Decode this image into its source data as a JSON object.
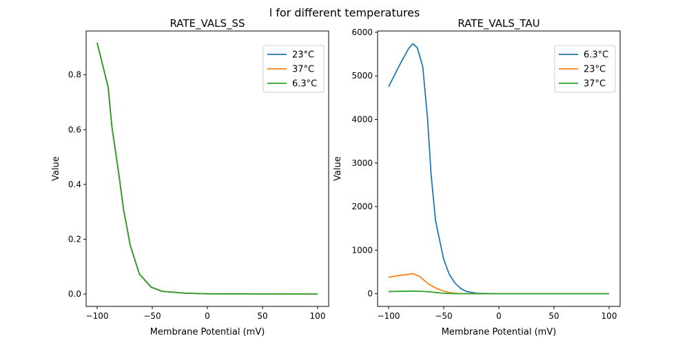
{
  "suptitle": "l for different temperatures",
  "chart_data": [
    {
      "type": "line",
      "title": "RATE_VALS_SS",
      "xlabel": "Membrane Potential (mV)",
      "ylabel": "Value",
      "xlim": [
        -110,
        110
      ],
      "ylim": [
        -0.045,
        0.96
      ],
      "xticks": [
        -100,
        -50,
        0,
        50,
        100
      ],
      "xtick_labels": [
        "−100",
        "−50",
        "0",
        "50",
        "100"
      ],
      "yticks": [
        0.0,
        0.2,
        0.4,
        0.6,
        0.8
      ],
      "ytick_labels": [
        "0.0",
        "0.2",
        "0.4",
        "0.6",
        "0.8"
      ],
      "legend": "top-right",
      "series": [
        {
          "name": "23°C",
          "color": "#1f77b4",
          "x": [
            -100,
            -90,
            -86.7,
            -80.4,
            -76,
            -70,
            -61.7,
            -51,
            -41,
            -20,
            0,
            100
          ],
          "y": [
            0.917,
            0.755,
            0.613,
            0.439,
            0.308,
            0.178,
            0.073,
            0.025,
            0.01,
            0.003,
            0.001,
            0.0
          ]
        },
        {
          "name": "37°C",
          "color": "#ff7f0e",
          "x": [
            -100,
            -90,
            -86.7,
            -80.4,
            -76,
            -70,
            -61.7,
            -51,
            -41,
            -20,
            0,
            100
          ],
          "y": [
            0.917,
            0.755,
            0.613,
            0.439,
            0.308,
            0.178,
            0.073,
            0.025,
            0.01,
            0.003,
            0.001,
            0.0
          ]
        },
        {
          "name": "6.3°C",
          "color": "#2ca02c",
          "x": [
            -100,
            -90,
            -86.7,
            -80.4,
            -76,
            -70,
            -61.7,
            -51,
            -41,
            -20,
            0,
            100
          ],
          "y": [
            0.917,
            0.755,
            0.613,
            0.439,
            0.308,
            0.178,
            0.073,
            0.025,
            0.01,
            0.003,
            0.001,
            0.0
          ]
        }
      ]
    },
    {
      "type": "line",
      "title": "RATE_VALS_TAU",
      "xlabel": "Membrane Potential (mV)",
      "ylabel": "Value",
      "xlim": [
        -110,
        110
      ],
      "ylim": [
        -290,
        6030
      ],
      "xticks": [
        -100,
        -50,
        0,
        50,
        100
      ],
      "xtick_labels": [
        "−100",
        "−50",
        "0",
        "50",
        "100"
      ],
      "yticks": [
        0,
        1000,
        2000,
        3000,
        4000,
        5000,
        6000
      ],
      "ytick_labels": [
        "0",
        "1000",
        "2000",
        "3000",
        "4000",
        "5000",
        "6000"
      ],
      "legend": "top-right",
      "series": [
        {
          "name": "6.3°C",
          "color": "#1f77b4",
          "x": [
            -100,
            -90,
            -82,
            -78,
            -74,
            -69,
            -64.6,
            -61.5,
            -57.3,
            -50,
            -45,
            -39.6,
            -34,
            -29,
            -20,
            0,
            100
          ],
          "y": [
            4750,
            5250,
            5620,
            5740,
            5650,
            5210,
            4010,
            2750,
            1660,
            790,
            450,
            240,
            110,
            50,
            10,
            0,
            0
          ]
        },
        {
          "name": "23°C",
          "color": "#ff7f0e",
          "x": [
            -100,
            -90,
            -78,
            -72,
            -64.6,
            -58,
            -52,
            -46,
            -40,
            -30,
            0,
            100
          ],
          "y": [
            380,
            420,
            460,
            400,
            240,
            140,
            77,
            30,
            10,
            2,
            0,
            0
          ]
        },
        {
          "name": "37°C",
          "color": "#2ca02c",
          "x": [
            -100,
            -90,
            -78,
            -68,
            -60,
            -50,
            -40,
            0,
            100
          ],
          "y": [
            50,
            55,
            60,
            52,
            35,
            10,
            3,
            0,
            0
          ]
        }
      ]
    }
  ]
}
